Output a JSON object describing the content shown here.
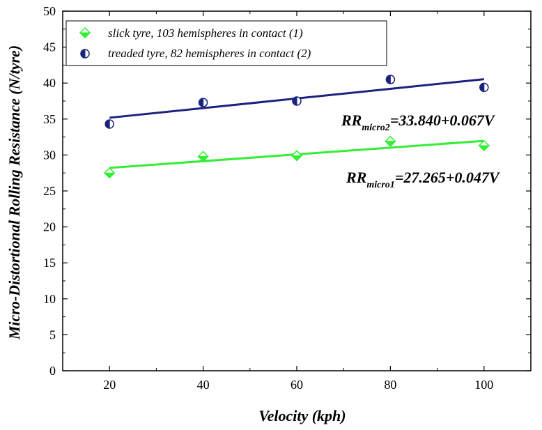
{
  "chart_data": {
    "type": "scatter",
    "xlabel": "Velocity (kph)",
    "ylabel": "Micro-Distortional Rolling Resistance (N/tyre)",
    "xlim": [
      10,
      110
    ],
    "ylim": [
      0,
      50
    ],
    "x_major_ticks": [
      20,
      40,
      60,
      80,
      100
    ],
    "y_major_ticks": [
      0,
      5,
      10,
      15,
      20,
      25,
      30,
      35,
      40,
      45,
      50
    ],
    "x_tick_labels": [
      "20",
      "40",
      "60",
      "80",
      "100"
    ],
    "y_tick_labels": [
      "0",
      "5",
      "10",
      "15",
      "20",
      "25",
      "30",
      "35",
      "40",
      "45",
      "50"
    ],
    "grid": false,
    "legend_position": "top-left",
    "series": [
      {
        "name": "slick tyre, 103 hemispheres in contact (1)",
        "marker": "diamond",
        "color": "#33ee33",
        "x": [
          20,
          40,
          60,
          80,
          100
        ],
        "y": [
          27.5,
          29.8,
          29.9,
          31.9,
          31.3
        ],
        "fit": {
          "intercept": 27.265,
          "slope": 0.047
        }
      },
      {
        "name": "treaded tyre, 82 hemispheres in contact (2)",
        "marker": "half-filled-circle",
        "color": "#1a237e",
        "x": [
          20,
          40,
          60,
          80,
          100
        ],
        "y": [
          34.3,
          37.3,
          37.5,
          40.5,
          39.4
        ],
        "fit": {
          "intercept": 33.84,
          "slope": 0.067
        }
      }
    ],
    "annotations": [
      {
        "main": "RR",
        "sub": "micro2",
        "rest": "=33.840+0.067V"
      },
      {
        "main": "RR",
        "sub": "micro1",
        "rest": "=27.265+0.047V"
      }
    ]
  }
}
